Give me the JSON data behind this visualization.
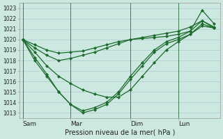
{
  "background_color": "#cce8e0",
  "grid_color": "#aacccc",
  "line_color": "#1a6b2a",
  "marker_color": "#1a6b2a",
  "xlabel": "Pression niveau de la mer( hPa )",
  "ylim": [
    1012.5,
    1023.5
  ],
  "yticks": [
    1013,
    1014,
    1015,
    1016,
    1017,
    1018,
    1019,
    1020,
    1021,
    1022,
    1023
  ],
  "x_tick_labels": [
    "Sam",
    "Mar",
    "Dim",
    "Lun"
  ],
  "x_tick_positions": [
    0,
    4,
    9,
    13
  ],
  "x_vlines": [
    0,
    4,
    9,
    13
  ],
  "xlim": [
    -0.3,
    16.5
  ],
  "series": [
    [
      1020.0,
      1019.5,
      1019.0,
      1018.7,
      1018.8,
      1018.9,
      1019.2,
      1019.5,
      1019.8,
      1020.0,
      1020.1,
      1020.2,
      1020.3,
      1020.5,
      1020.8,
      1022.8,
      1021.5
    ],
    [
      1020.0,
      1019.2,
      1018.5,
      1018.0,
      1018.2,
      1018.5,
      1018.8,
      1019.2,
      1019.6,
      1020.0,
      1020.2,
      1020.4,
      1020.6,
      1020.8,
      1021.2,
      1021.8,
      1021.2
    ],
    [
      1020.0,
      1018.8,
      1017.5,
      1016.5,
      1015.8,
      1015.2,
      1014.8,
      1014.5,
      1014.5,
      1015.2,
      1016.5,
      1017.8,
      1019.0,
      1019.8,
      1020.5,
      1021.5,
      1021.1
    ],
    [
      1020.0,
      1018.3,
      1016.7,
      1015.0,
      1013.8,
      1013.2,
      1013.5,
      1014.0,
      1015.0,
      1016.5,
      1017.8,
      1019.0,
      1019.8,
      1020.2,
      1020.8,
      1021.8,
      1021.1
    ],
    [
      1020.0,
      1018.0,
      1016.5,
      1015.0,
      1013.8,
      1013.0,
      1013.3,
      1013.8,
      1014.8,
      1016.2,
      1017.5,
      1018.8,
      1019.6,
      1020.0,
      1020.5,
      1021.3,
      1021.1
    ]
  ]
}
